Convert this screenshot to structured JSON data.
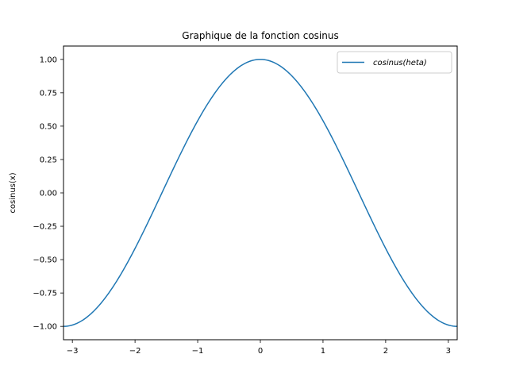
{
  "chart_data": {
    "type": "line",
    "title": "Graphique de la fonction cosinus",
    "xlabel": "",
    "ylabel": "cosinus(x)",
    "function": "cos",
    "xlim": [
      -3.14159,
      3.14159
    ],
    "ylim": [
      -1.1,
      1.1
    ],
    "x_ticks": [
      -3,
      -2,
      -1,
      0,
      1,
      2,
      3
    ],
    "x_tick_labels": [
      "−3",
      "−2",
      "−1",
      "0",
      "1",
      "2",
      "3"
    ],
    "y_ticks": [
      -1.0,
      -0.75,
      -0.5,
      -0.25,
      0.0,
      0.25,
      0.5,
      0.75,
      1.0
    ],
    "y_tick_labels": [
      "−1.00",
      "−0.75",
      "−0.50",
      "−0.25",
      "0.00",
      "0.25",
      "0.50",
      "0.75",
      "1.00"
    ],
    "grid": false,
    "legend_position": "top-right",
    "series": [
      {
        "name": "cosinus(heta)",
        "color": "#1f77b4",
        "x": [
          -3.1416,
          -2.9,
          -2.6,
          -2.3,
          -2.0,
          -1.7,
          -1.4,
          -1.1,
          -0.8,
          -0.5,
          -0.2,
          0.0,
          0.2,
          0.5,
          0.8,
          1.1,
          1.4,
          1.7,
          2.0,
          2.3,
          2.6,
          2.9,
          3.1416
        ],
        "values": [
          -1.0,
          -0.971,
          -0.857,
          -0.666,
          -0.416,
          -0.129,
          0.17,
          0.454,
          0.697,
          0.878,
          0.98,
          1.0,
          0.98,
          0.878,
          0.697,
          0.454,
          0.17,
          -0.129,
          -0.416,
          -0.666,
          -0.857,
          -0.971,
          -1.0
        ]
      }
    ]
  }
}
